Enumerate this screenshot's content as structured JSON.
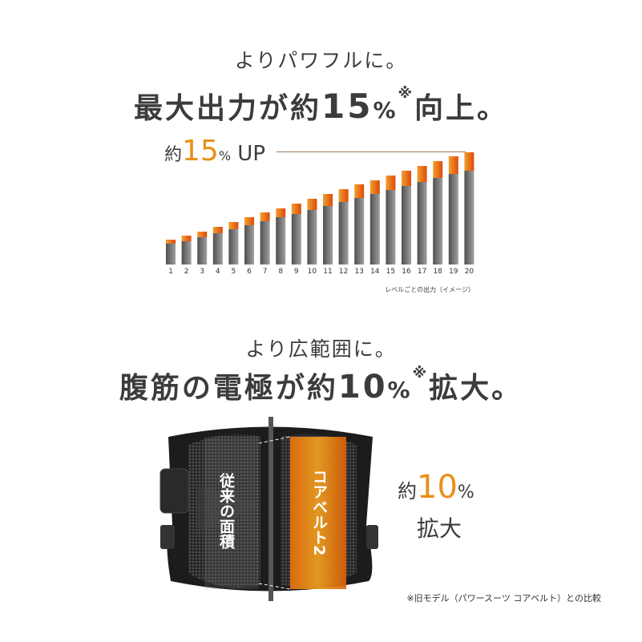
{
  "section1": {
    "subtitle": "よりパワフルに。",
    "title_pre": "最大出力が約",
    "title_num": "15",
    "title_unit": "%",
    "title_mark": "※",
    "title_post": "向上。"
  },
  "chart_label": {
    "pre": "約",
    "num": "15",
    "unit": "%",
    "post": " UP"
  },
  "chart_data": {
    "type": "bar",
    "stacked": true,
    "categories": [
      "1",
      "2",
      "3",
      "4",
      "5",
      "6",
      "7",
      "8",
      "9",
      "10",
      "11",
      "12",
      "13",
      "14",
      "15",
      "16",
      "17",
      "18",
      "19",
      "20"
    ],
    "series": [
      {
        "values": [
          26,
          29,
          34,
          39,
          44,
          49,
          54,
          59,
          63,
          68,
          73,
          78,
          83,
          88,
          93,
          98,
          103,
          108,
          113,
          117
        ],
        "color": "#7a7a7a"
      },
      {
        "values": [
          5,
          7,
          7,
          8,
          9,
          10,
          11,
          11,
          13,
          14,
          15,
          16,
          17,
          17,
          18,
          19,
          20,
          21,
          22,
          23
        ],
        "color": "#e8701a"
      }
    ],
    "caption": "レベルごとの出力（イメージ）",
    "ylim": [
      0,
      140
    ],
    "grid": false
  },
  "section2": {
    "subtitle": "より広範囲に。",
    "title_pre": "腹筋の電極が約",
    "title_num": "10",
    "title_unit": "%",
    "title_mark": "※",
    "title_post": "拡大。"
  },
  "belt": {
    "old_label": "従来の面積",
    "new_label": "コアベルト2"
  },
  "expand": {
    "pre": "約",
    "num": "10",
    "unit": "%",
    "post": "拡大"
  },
  "footnote": "※旧モデル（パワースーツ コアベルト）との比較",
  "colors": {
    "accent": "#e8701a",
    "text": "#3c3c3c"
  }
}
